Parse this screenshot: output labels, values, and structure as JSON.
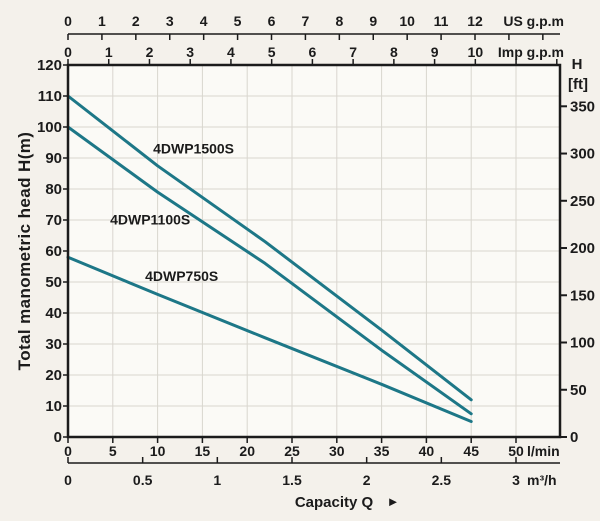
{
  "colors": {
    "background": "#f4f1eb",
    "plot_background": "#fbfaf6",
    "grid": "#d9d6cf",
    "axis": "#1b1b1b",
    "text": "#1b1b1b",
    "curve": "#1d7787"
  },
  "chart_data": {
    "type": "line",
    "y_axis_left": {
      "title": "Total manometric head H(m)",
      "unit": "m",
      "ticks": [
        0,
        10,
        20,
        30,
        40,
        50,
        60,
        70,
        80,
        90,
        100,
        110,
        120
      ],
      "range": [
        0,
        120
      ]
    },
    "y_axis_right": {
      "title_line1": "H",
      "title_line2": "[ft]",
      "unit": "ft",
      "ticks": [
        0,
        50,
        100,
        150,
        200,
        250,
        300,
        350
      ],
      "m_per_ft": 0.3048
    },
    "x_axis_us_gpm": {
      "unit_label": "US g.p.m",
      "ticks": [
        0,
        1,
        2,
        3,
        4,
        5,
        6,
        7,
        8,
        9,
        10,
        11,
        12
      ],
      "lmin_per_unit": 3.7854
    },
    "x_axis_imp_gpm": {
      "unit_label": "Imp g.p.m",
      "ticks": [
        0,
        1,
        2,
        3,
        4,
        5,
        6,
        7,
        8,
        9,
        10
      ],
      "lmin_per_unit": 4.5461
    },
    "x_axis_lmin": {
      "unit_label": "l/min",
      "ticks": [
        0,
        5,
        10,
        15,
        20,
        25,
        30,
        35,
        40,
        45,
        50
      ],
      "range": [
        0,
        54.9
      ]
    },
    "x_axis_m3h": {
      "unit_label": "m³/h",
      "ticks": [
        0,
        0.5,
        1,
        1.5,
        2,
        2.5,
        3
      ],
      "lmin_per_unit": 16.6667
    },
    "x_title": "Capacity Q",
    "x_title_arrow": "►",
    "grid": {
      "x_step_lmin": 5,
      "y_step_m": 10
    },
    "series": [
      {
        "name": "4DWP1500S",
        "points_lmin_m": [
          [
            0,
            110
          ],
          [
            10,
            87.5
          ],
          [
            22,
            63
          ],
          [
            35,
            34.5
          ],
          [
            45,
            12
          ]
        ],
        "label_anchor_lmin_m": [
          9.5,
          91.5
        ]
      },
      {
        "name": "4DWP1100S",
        "points_lmin_m": [
          [
            0,
            100
          ],
          [
            10,
            79
          ],
          [
            22,
            56
          ],
          [
            35,
            28
          ],
          [
            45,
            7.5
          ]
        ],
        "label_anchor_lmin_m": [
          4.7,
          68.5
        ]
      },
      {
        "name": "4DWP750S",
        "points_lmin_m": [
          [
            0,
            58
          ],
          [
            10,
            46
          ],
          [
            22,
            32
          ],
          [
            35,
            17
          ],
          [
            45,
            5
          ]
        ],
        "label_anchor_lmin_m": [
          8.6,
          50.3
        ]
      }
    ]
  }
}
